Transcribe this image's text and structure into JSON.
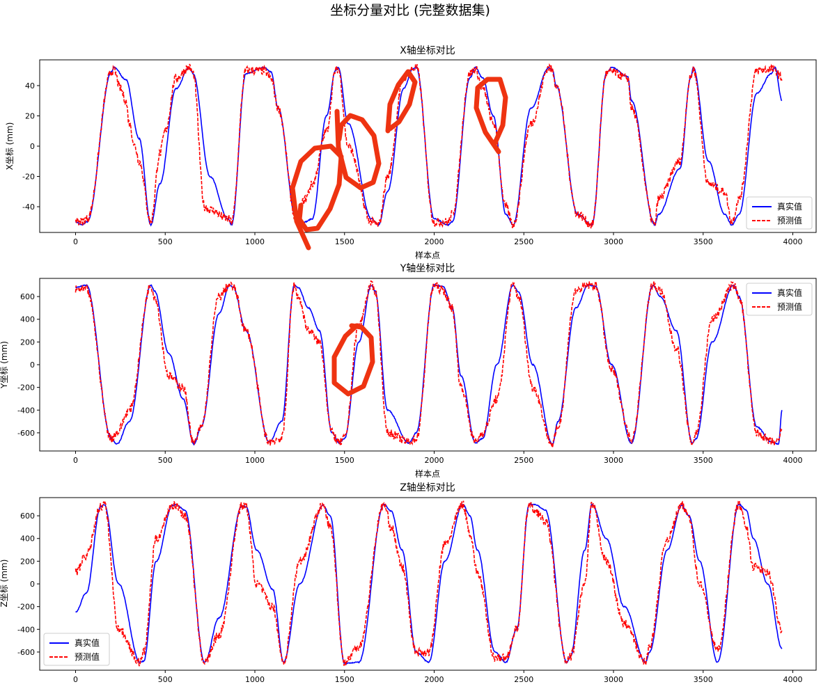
{
  "figure": {
    "title": "坐标分量对比 (完整数据集)"
  },
  "colors": {
    "true": "#0000ff",
    "pred": "#ff0000",
    "annotation": "#ee3311"
  },
  "chart_data": [
    {
      "type": "line",
      "title": "X轴坐标对比",
      "xlabel": "样本点",
      "ylabel": "X坐标 (mm)",
      "xlim": [
        -200,
        4130
      ],
      "ylim": [
        -57,
        57
      ],
      "xticks": [
        0,
        500,
        1000,
        1500,
        2000,
        2500,
        3000,
        3500,
        4000
      ],
      "yticks": [
        -40,
        -20,
        0,
        20,
        40
      ],
      "legend": "lower-right",
      "num_points": 3940,
      "series": [
        {
          "name": "真实值",
          "style": "solid",
          "x": [
            0,
            35,
            65,
            200,
            215,
            280,
            355,
            420,
            470,
            560,
            635,
            655,
            750,
            850,
            870,
            950,
            1050,
            1090,
            1130,
            1230,
            1280,
            1320,
            1400,
            1450,
            1465,
            1520,
            1650,
            1690,
            1740,
            1830,
            1880,
            1900,
            2000,
            2080,
            2100,
            2200,
            2230,
            2270,
            2330,
            2400,
            2440,
            2540,
            2640,
            2660,
            2680,
            2800,
            2880,
            2960,
            2990,
            3080,
            3100,
            3230,
            3250,
            3370,
            3430,
            3445,
            3530,
            3620,
            3660,
            3700,
            3800,
            3880,
            3900,
            3940
          ],
          "y": [
            -50,
            -52,
            -50,
            49,
            52,
            44,
            5,
            -52,
            -25,
            38,
            52,
            48,
            -20,
            -48,
            -52,
            48,
            52,
            49,
            25,
            -48,
            -50,
            -48,
            20,
            50,
            52,
            15,
            -48,
            -52,
            -30,
            38,
            51,
            52,
            -48,
            -52,
            -50,
            45,
            52,
            45,
            20,
            -45,
            -52,
            25,
            52,
            50,
            40,
            -45,
            -52,
            48,
            52,
            46,
            30,
            -52,
            -45,
            -15,
            45,
            52,
            -10,
            -45,
            -52,
            -45,
            35,
            48,
            52,
            30
          ]
        },
        {
          "name": "预测值",
          "style": "dashed",
          "noisy": true,
          "x": [
            0,
            35,
            65,
            200,
            215,
            250,
            280,
            300,
            330,
            355,
            420,
            470,
            500,
            560,
            635,
            655,
            720,
            750,
            850,
            870,
            950,
            1050,
            1090,
            1130,
            1230,
            1280,
            1320,
            1400,
            1450,
            1465,
            1520,
            1650,
            1690,
            1740,
            1830,
            1880,
            1900,
            2000,
            2080,
            2100,
            2200,
            2230,
            2270,
            2330,
            2400,
            2440,
            2540,
            2640,
            2660,
            2680,
            2800,
            2880,
            2960,
            2990,
            3080,
            3100,
            3230,
            3250,
            3370,
            3430,
            3445,
            3530,
            3620,
            3660,
            3700,
            3800,
            3880,
            3900,
            3940
          ],
          "y": [
            -49,
            -50,
            -48,
            49,
            50,
            38,
            30,
            15,
            0,
            -10,
            -50,
            -5,
            10,
            45,
            52,
            48,
            -40,
            -42,
            -48,
            -50,
            50,
            50,
            45,
            25,
            -48,
            -35,
            -25,
            10,
            50,
            51,
            0,
            -50,
            -52,
            -20,
            45,
            51,
            52,
            -50,
            -50,
            -45,
            48,
            51,
            38,
            15,
            -40,
            -52,
            15,
            52,
            50,
            40,
            -45,
            -52,
            48,
            49,
            45,
            25,
            -52,
            -35,
            -10,
            45,
            51,
            -25,
            -30,
            -50,
            -35,
            50,
            51,
            50,
            45
          ]
        }
      ]
    },
    {
      "type": "line",
      "title": "Y轴坐标对比",
      "xlabel": "样本点",
      "ylabel": "Y坐标 (mm)",
      "xlim": [
        -200,
        4130
      ],
      "ylim": [
        -760,
        760
      ],
      "xticks": [
        0,
        500,
        1000,
        1500,
        2000,
        2500,
        3000,
        3500,
        4000
      ],
      "yticks": [
        -600,
        -400,
        -200,
        0,
        200,
        400,
        600
      ],
      "legend": "upper-right",
      "num_points": 3940,
      "series": [
        {
          "name": "真实值",
          "style": "solid",
          "x": [
            0,
            60,
            200,
            230,
            300,
            420,
            440,
            520,
            600,
            660,
            700,
            800,
            860,
            880,
            950,
            1080,
            1150,
            1220,
            1240,
            1300,
            1360,
            1430,
            1470,
            1500,
            1580,
            1650,
            1670,
            1740,
            1860,
            1900,
            2000,
            2050,
            2100,
            2150,
            2230,
            2270,
            2350,
            2440,
            2470,
            2550,
            2660,
            2690,
            2790,
            2860,
            2900,
            2990,
            3100,
            3220,
            3260,
            3350,
            3440,
            3460,
            3550,
            3670,
            3700,
            3800,
            3880,
            3920,
            3940
          ],
          "y": [
            680,
            700,
            -650,
            -700,
            -500,
            700,
            650,
            100,
            -300,
            -700,
            -550,
            450,
            700,
            680,
            300,
            -680,
            -500,
            700,
            680,
            500,
            300,
            -600,
            -690,
            -650,
            200,
            700,
            650,
            -400,
            -690,
            -600,
            700,
            690,
            500,
            -100,
            -690,
            -650,
            0,
            700,
            640,
            0,
            -700,
            -500,
            500,
            700,
            690,
            0,
            -690,
            700,
            600,
            300,
            -690,
            -650,
            200,
            700,
            600,
            -550,
            -680,
            -700,
            -400
          ]
        },
        {
          "name": "预测值",
          "style": "dashed",
          "noisy": true,
          "x": [
            0,
            60,
            200,
            230,
            300,
            420,
            440,
            520,
            600,
            660,
            700,
            800,
            860,
            880,
            950,
            1080,
            1150,
            1220,
            1240,
            1300,
            1360,
            1430,
            1470,
            1500,
            1580,
            1650,
            1670,
            1740,
            1860,
            1900,
            2000,
            2050,
            2100,
            2150,
            2230,
            2270,
            2350,
            2440,
            2470,
            2550,
            2660,
            2690,
            2790,
            2860,
            2900,
            2990,
            3100,
            3220,
            3260,
            3350,
            3440,
            3460,
            3550,
            3670,
            3700,
            3800,
            3880,
            3920,
            3940
          ],
          "y": [
            660,
            660,
            -650,
            -600,
            -400,
            700,
            600,
            -100,
            -200,
            -700,
            -550,
            600,
            700,
            680,
            300,
            -680,
            -650,
            700,
            600,
            300,
            200,
            -600,
            -690,
            -650,
            350,
            700,
            650,
            -600,
            -680,
            -650,
            700,
            650,
            500,
            -200,
            -680,
            -600,
            -300,
            700,
            600,
            -200,
            -700,
            -550,
            650,
            700,
            690,
            -50,
            -650,
            700,
            650,
            150,
            -690,
            -600,
            400,
            700,
            600,
            -600,
            -680,
            -680,
            -550
          ]
        }
      ]
    },
    {
      "type": "line",
      "title": "Z轴坐标对比",
      "xlabel": "样本点",
      "ylabel": "Z坐标 (mm)",
      "xlim": [
        -200,
        4130
      ],
      "ylim": [
        -760,
        760
      ],
      "xticks": [
        0,
        500,
        1000,
        1500,
        2000,
        2500,
        3000,
        3500,
        4000
      ],
      "yticks": [
        -600,
        -400,
        -200,
        0,
        200,
        400,
        600
      ],
      "legend": "lower-left",
      "num_points": 3940,
      "series": [
        {
          "name": "真实值",
          "style": "solid",
          "x": [
            0,
            60,
            140,
            160,
            240,
            360,
            380,
            450,
            540,
            560,
            610,
            720,
            800,
            930,
            950,
            1010,
            1100,
            1160,
            1250,
            1380,
            1420,
            1500,
            1580,
            1720,
            1760,
            1820,
            1900,
            1970,
            2060,
            2160,
            2200,
            2240,
            2340,
            2400,
            2460,
            2530,
            2560,
            2620,
            2740,
            2760,
            2840,
            2880,
            2960,
            3060,
            3180,
            3200,
            3300,
            3380,
            3420,
            3480,
            3580,
            3700,
            3740,
            3780,
            3860,
            3940
          ],
          "y": [
            -250,
            -80,
            680,
            700,
            0,
            -690,
            -680,
            200,
            690,
            700,
            650,
            -690,
            -300,
            690,
            680,
            300,
            -50,
            -690,
            0,
            690,
            600,
            -700,
            -690,
            700,
            640,
            300,
            -600,
            -690,
            200,
            700,
            600,
            300,
            -600,
            -690,
            -400,
            700,
            700,
            650,
            -690,
            -640,
            300,
            700,
            400,
            -200,
            -690,
            -600,
            300,
            690,
            600,
            200,
            -690,
            700,
            650,
            400,
            0,
            -570
          ]
        },
        {
          "name": "预测值",
          "style": "dashed",
          "noisy": true,
          "x": [
            0,
            60,
            140,
            160,
            240,
            360,
            380,
            450,
            540,
            560,
            610,
            720,
            800,
            930,
            950,
            1010,
            1100,
            1160,
            1250,
            1380,
            1420,
            1500,
            1580,
            1720,
            1760,
            1820,
            1900,
            1970,
            2060,
            2160,
            2200,
            2240,
            2340,
            2400,
            2460,
            2530,
            2560,
            2620,
            2740,
            2760,
            2840,
            2880,
            2960,
            3060,
            3180,
            3200,
            3300,
            3380,
            3420,
            3480,
            3580,
            3700,
            3740,
            3780,
            3860,
            3940
          ],
          "y": [
            100,
            250,
            680,
            700,
            -400,
            -690,
            -600,
            400,
            690,
            690,
            600,
            -690,
            -450,
            690,
            680,
            0,
            -200,
            -690,
            200,
            690,
            500,
            -690,
            -550,
            700,
            500,
            150,
            -600,
            -600,
            350,
            700,
            450,
            100,
            -650,
            -650,
            -400,
            700,
            650,
            550,
            -690,
            -640,
            0,
            700,
            200,
            -350,
            -690,
            -550,
            400,
            690,
            600,
            0,
            -580,
            700,
            500,
            150,
            100,
            -400
          ]
        }
      ]
    }
  ]
}
